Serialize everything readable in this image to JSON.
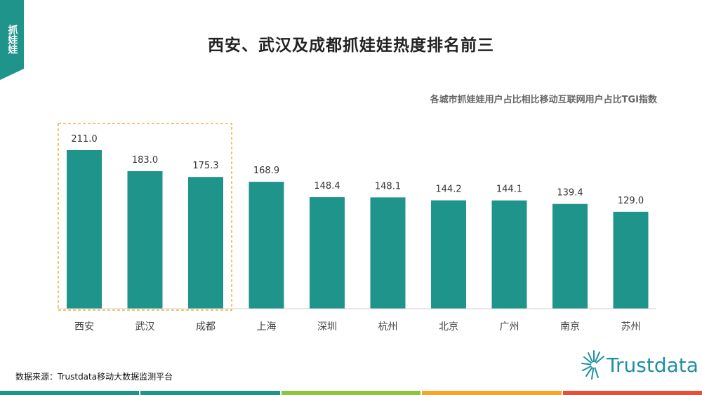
{
  "side_tab": {
    "label": "抓娃娃"
  },
  "title": "西安、武汉及成都抓娃娃热度排名前三",
  "subtitle": "各城市抓娃娃用户占比相比移动互联网用户占比TGI指数",
  "source": "数据来源：Trustdata移动大数据监测平台",
  "logo": {
    "text": "Trustdata"
  },
  "colors": {
    "bar": "#1f948b",
    "highlight_box": "#f0b23a",
    "side_tab": "#1f948b",
    "footer": [
      "#1f948b",
      "#1f948b",
      "#8cc63f",
      "#f5a623",
      "#e94e3c"
    ]
  },
  "chart_data": {
    "type": "bar",
    "title": "",
    "xlabel": "",
    "ylabel": "",
    "categories": [
      "西安",
      "武汉",
      "成都",
      "上海",
      "深圳",
      "杭州",
      "北京",
      "广州",
      "南京",
      "苏州"
    ],
    "values": [
      211.0,
      183.0,
      175.3,
      168.9,
      148.4,
      148.1,
      144.2,
      144.1,
      139.4,
      129.0
    ],
    "value_labels": [
      "211.0",
      "183.0",
      "175.3",
      "168.9",
      "148.4",
      "148.1",
      "144.2",
      "144.1",
      "139.4",
      "129.0"
    ],
    "ylim": [
      0,
      211.0
    ],
    "grid": false,
    "legend": "none",
    "highlighted_categories": [
      "西安",
      "武汉",
      "成都"
    ]
  }
}
